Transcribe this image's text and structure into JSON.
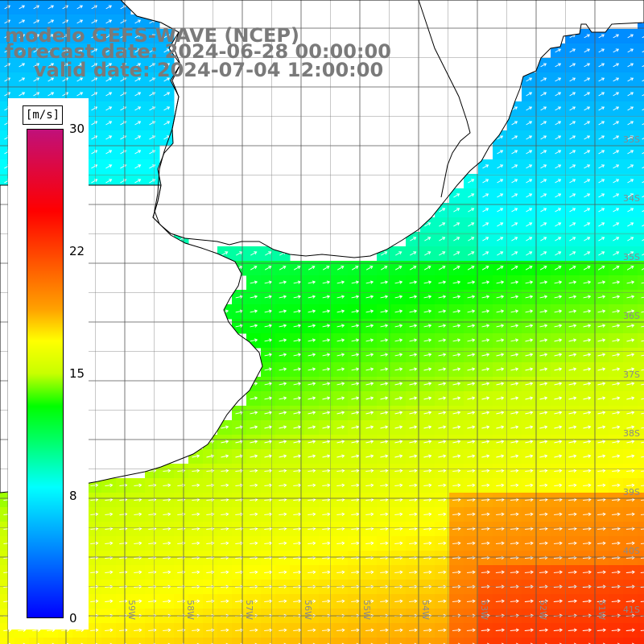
{
  "header": {
    "model": "modelo GEFS-WAVE (NCEP)",
    "forecast": "forecast date: 2024-06-28 00:00:00",
    "valid": "valid date: 2024-07-04 12:00:00"
  },
  "colorbar": {
    "unit": "[m/s]",
    "ticks": [
      "30",
      "22",
      "15",
      "8",
      "0"
    ],
    "scale": [
      {
        "value": 0,
        "color": "#0000ff"
      },
      {
        "value": 4,
        "color": "#0080ff"
      },
      {
        "value": 8,
        "color": "#00ffff"
      },
      {
        "value": 11,
        "color": "#00ff60"
      },
      {
        "value": 13,
        "color": "#00ff00"
      },
      {
        "value": 15,
        "color": "#c8ff00"
      },
      {
        "value": 17,
        "color": "#ffff00"
      },
      {
        "value": 19,
        "color": "#ffa000"
      },
      {
        "value": 22,
        "color": "#ff5000"
      },
      {
        "value": 25,
        "color": "#ff0000"
      },
      {
        "value": 30,
        "color": "#c0107a"
      }
    ]
  },
  "map": {
    "lon_labels": [
      "61W",
      "60W",
      "59W",
      "58W",
      "57W",
      "56W",
      "55W",
      "54W",
      "53W",
      "52W",
      "51W"
    ],
    "lat_labels": [
      "33S",
      "34S",
      "35S",
      "36S",
      "37S",
      "38S",
      "39S",
      "40S",
      "41S"
    ],
    "field": "wind speed with direction arrows",
    "arrow_direction": "northeastward"
  }
}
